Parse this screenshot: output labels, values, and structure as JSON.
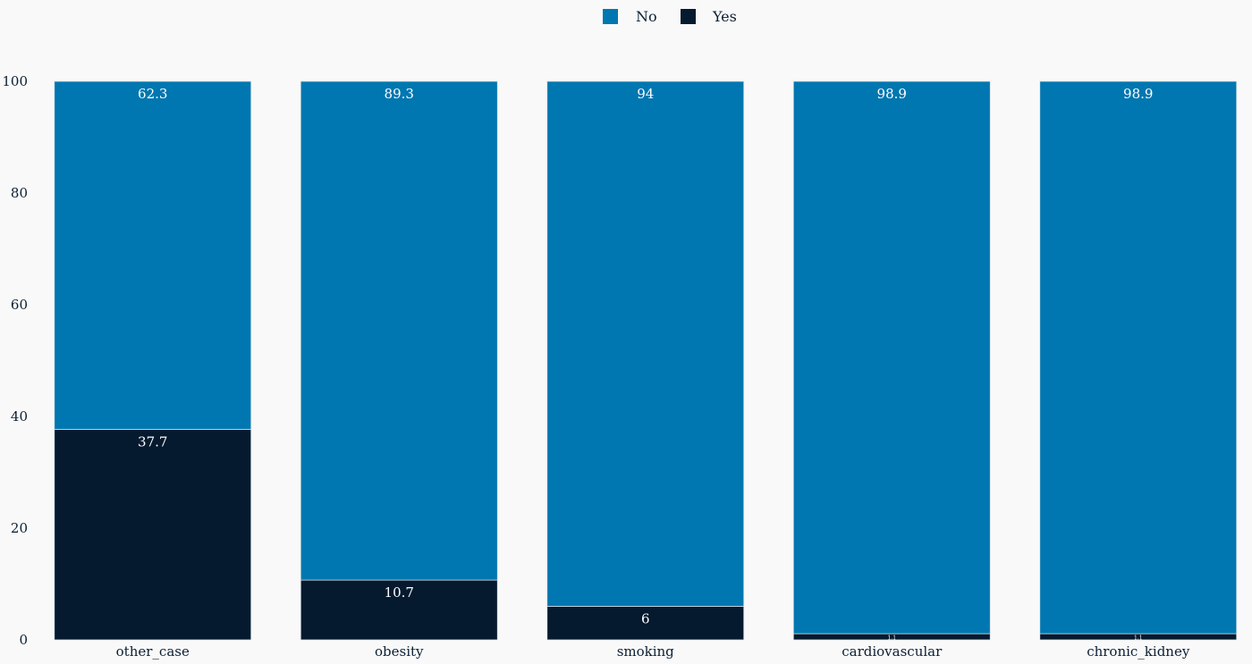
{
  "chart_data": {
    "type": "bar",
    "stacked": true,
    "categories": [
      "other_case",
      "obesity",
      "smoking",
      "cardiovascular",
      "chronic_kidney"
    ],
    "series": [
      {
        "name": "Yes",
        "values": [
          37.7,
          10.7,
          6,
          1.1,
          1.1
        ],
        "color": "#061a2f"
      },
      {
        "name": "No",
        "values": [
          62.3,
          89.3,
          94,
          98.9,
          98.9
        ],
        "color": "#0077b0"
      }
    ],
    "legend": {
      "order": [
        "No",
        "Yes"
      ],
      "placement": "top-center"
    },
    "ylim": [
      0,
      100
    ],
    "yticks": [
      0,
      20,
      40,
      60,
      80,
      100
    ],
    "grid": false,
    "data_labels": true
  }
}
